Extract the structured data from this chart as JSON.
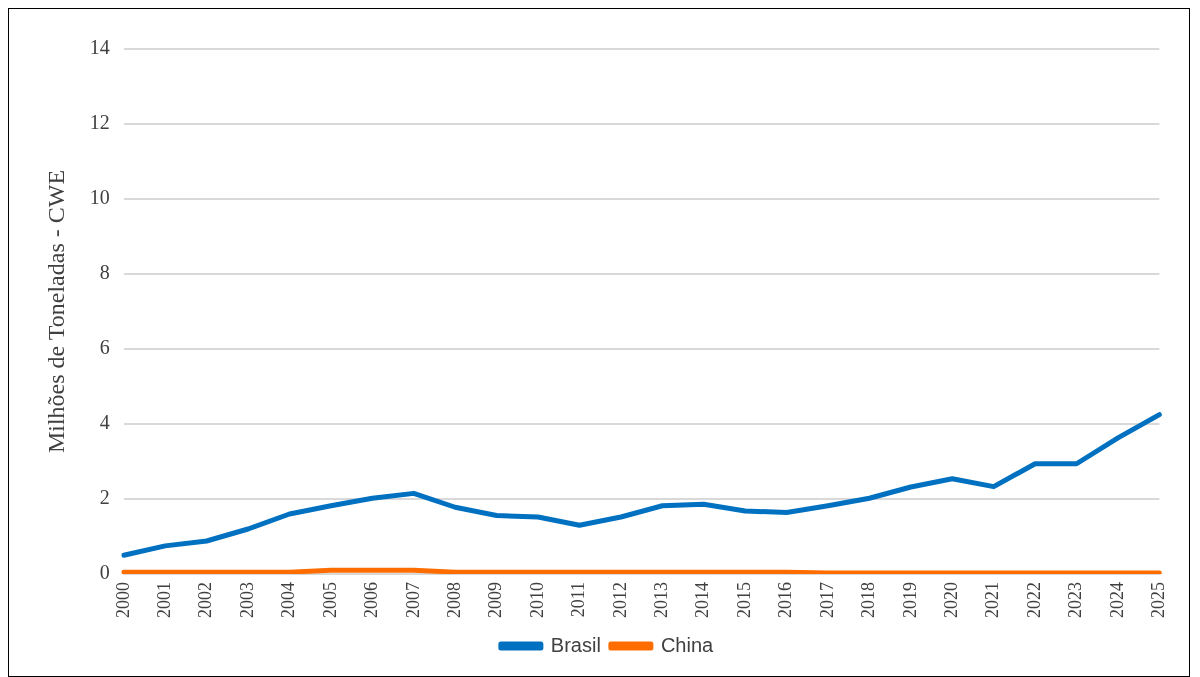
{
  "chart_data": {
    "type": "line",
    "ylabel": "Milhões de Toneladas - CWE",
    "categories": [
      "2000",
      "2001",
      "2002",
      "2003",
      "2004",
      "2005",
      "2006",
      "2007",
      "2008",
      "2009",
      "2010",
      "2011",
      "2012",
      "2013",
      "2014",
      "2015",
      "2016",
      "2017",
      "2018",
      "2019",
      "2020",
      "2021",
      "2022",
      "2023",
      "2024",
      "2025"
    ],
    "series": [
      {
        "name": "Brasil",
        "color": "#0070c0",
        "values": [
          0.5,
          0.75,
          0.88,
          1.2,
          1.6,
          1.82,
          2.02,
          2.15,
          1.78,
          1.56,
          1.52,
          1.3,
          1.52,
          1.82,
          1.86,
          1.68,
          1.64,
          1.82,
          2.02,
          2.32,
          2.54,
          2.33,
          2.94,
          2.94,
          3.63,
          4.25
        ]
      },
      {
        "name": "China",
        "color": "#ff6d00",
        "values": [
          0.05,
          0.05,
          0.05,
          0.05,
          0.05,
          0.1,
          0.1,
          0.1,
          0.05,
          0.05,
          0.05,
          0.05,
          0.05,
          0.05,
          0.05,
          0.05,
          0.05,
          0.03,
          0.03,
          0.03,
          0.03,
          0.03,
          0.03,
          0.03,
          0.03,
          0.03
        ]
      }
    ],
    "ylim": [
      0,
      14
    ],
    "yticks": [
      0,
      2,
      4,
      6,
      8,
      10,
      12,
      14
    ],
    "grid": "y",
    "legend": "bottom",
    "marker": "none",
    "line_style": "solid"
  }
}
